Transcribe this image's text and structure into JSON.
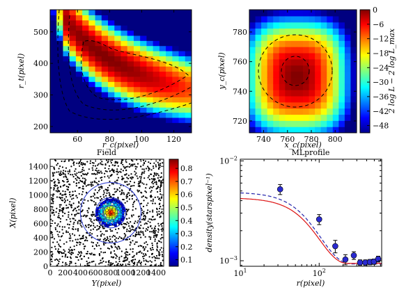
{
  "chart_data": [
    {
      "type": "heatmap",
      "title": "",
      "xlabel": "r_c(pixel)",
      "ylabel": "r_t(pixel)",
      "xlim": [
        43,
        131
      ],
      "ylim": [
        180,
        570
      ],
      "xticks": [
        "60",
        "80",
        "100",
        "120"
      ],
      "yticks": [
        "200",
        "300",
        "400",
        "500"
      ],
      "contours": "dashed, three levels"
    },
    {
      "type": "heatmap",
      "title": "",
      "xlabel": "x_c(pixel)",
      "ylabel": "y_c(pixel)",
      "xlim": [
        728,
        818
      ],
      "ylim": [
        712,
        795
      ],
      "xticks": [
        "740",
        "760",
        "780",
        "800"
      ],
      "yticks": [
        "720",
        "740",
        "760",
        "780"
      ],
      "center": [
        768,
        750
      ],
      "contours": "dashed, two levels",
      "colorbar": {
        "label": "2 log L − 2 log L_max",
        "range": [
          -51,
          0
        ],
        "ticks": [
          "0",
          "−6",
          "−12",
          "−18",
          "−24",
          "−30",
          "−36",
          "−42",
          "−48"
        ]
      }
    },
    {
      "type": "scatter",
      "title": "Field",
      "xlabel": "Y(pixel)",
      "ylabel": "X(pixel)",
      "xlim": [
        0,
        1500
      ],
      "ylim": [
        0,
        1500
      ],
      "xticks": [
        "0",
        "200",
        "400",
        "600",
        "800",
        "1000",
        "1200",
        "1400"
      ],
      "yticks": [
        "0",
        "200",
        "400",
        "600",
        "800",
        "1000",
        "1200",
        "1400"
      ],
      "cluster_center": [
        800,
        750
      ],
      "circles": [
        {
          "r": 100
        },
        {
          "r": 200
        },
        {
          "r": 400
        }
      ],
      "colorbar": {
        "range": [
          0.05,
          0.87
        ],
        "ticks": [
          "0.8",
          "0.7",
          "0.6",
          "0.5",
          "0.4",
          "0.3",
          "0.2",
          "0.1"
        ]
      }
    },
    {
      "type": "scatter",
      "title": "MLprofile",
      "xlabel": "r(pixel)",
      "ylabel": "density(starspixel⁻¹)",
      "xscale": "log",
      "yscale": "log",
      "xlim": [
        10,
        620
      ],
      "ylim": [
        0.00088,
        0.0104
      ],
      "points": [
        {
          "x": 32,
          "y": 0.0052,
          "err": 0.0006
        },
        {
          "x": 100,
          "y": 0.0026,
          "err": 0.0003
        },
        {
          "x": 160,
          "y": 0.0014,
          "err": 0.0002
        },
        {
          "x": 215,
          "y": 0.00103,
          "err": 0.00012
        },
        {
          "x": 275,
          "y": 0.00113,
          "err": 0.0001
        },
        {
          "x": 330,
          "y": 0.00096,
          "err": 6e-05
        },
        {
          "x": 385,
          "y": 0.00096,
          "err": 6e-05
        },
        {
          "x": 440,
          "y": 0.00097,
          "err": 6e-05
        },
        {
          "x": 495,
          "y": 0.00098,
          "err": 6e-05
        },
        {
          "x": 560,
          "y": 0.00104,
          "err": 7e-05
        }
      ],
      "fit_colors": {
        "solid": "#dd1111",
        "dashed": "#2222aa"
      }
    }
  ]
}
